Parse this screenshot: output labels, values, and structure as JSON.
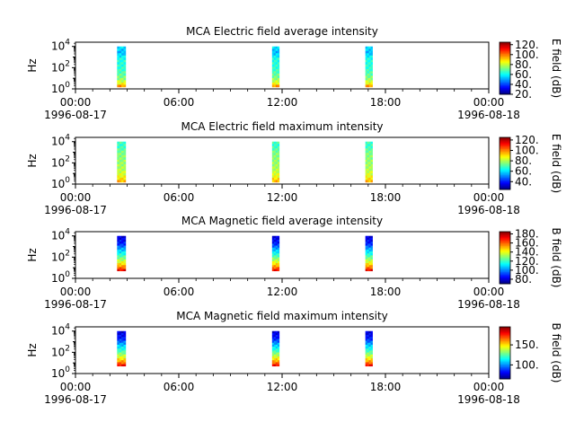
{
  "chart_data": [
    {
      "type": "heatmap",
      "title": "MCA  Electric field average intensity",
      "ylabel": "Hz",
      "y_scale": "log",
      "y_ticks": [
        {
          "base": "10",
          "exp": "0"
        },
        {
          "base": "10",
          "exp": "2"
        },
        {
          "base": "10",
          "exp": "4"
        }
      ],
      "colorbar": {
        "label": "E field (dB)",
        "ticks": [
          "20.",
          "40.",
          "60.",
          "80.",
          "100.",
          "120."
        ],
        "range": [
          20,
          125
        ]
      },
      "x_ticks": [
        "00:00",
        "06:00",
        "12:00",
        "18:00",
        "00:00"
      ],
      "x_dates": [
        "1996-08-17",
        "1996-08-18"
      ],
      "segments": [
        {
          "start": "1996-08-17T02:25",
          "end": "1996-08-17T02:55",
          "freq_min_hz": 1.5,
          "freq_max_hz": 10000,
          "profile": "e_avg"
        },
        {
          "start": "1996-08-17T11:25",
          "end": "1996-08-17T11:50",
          "freq_min_hz": 1.5,
          "freq_max_hz": 10000,
          "profile": "e_avg"
        },
        {
          "start": "1996-08-17T16:50",
          "end": "1996-08-17T17:15",
          "freq_min_hz": 1.5,
          "freq_max_hz": 10000,
          "profile": "e_avg"
        }
      ]
    },
    {
      "type": "heatmap",
      "title": "MCA  Electric field maximum intensity",
      "ylabel": "Hz",
      "y_scale": "log",
      "y_ticks": [
        {
          "base": "10",
          "exp": "0"
        },
        {
          "base": "10",
          "exp": "2"
        },
        {
          "base": "10",
          "exp": "4"
        }
      ],
      "colorbar": {
        "label": "E field (dB)",
        "ticks": [
          "40.",
          "60.",
          "80.",
          "100.",
          "120."
        ],
        "range": [
          25,
          125
        ]
      },
      "x_ticks": [
        "00:00",
        "06:00",
        "12:00",
        "18:00",
        "00:00"
      ],
      "x_dates": [
        "1996-08-17",
        "1996-08-18"
      ],
      "segments": [
        {
          "start": "1996-08-17T02:25",
          "end": "1996-08-17T02:55",
          "freq_min_hz": 1.5,
          "freq_max_hz": 10000,
          "profile": "e_max"
        },
        {
          "start": "1996-08-17T11:25",
          "end": "1996-08-17T11:50",
          "freq_min_hz": 1.5,
          "freq_max_hz": 10000,
          "profile": "e_max"
        },
        {
          "start": "1996-08-17T16:50",
          "end": "1996-08-17T17:15",
          "freq_min_hz": 1.5,
          "freq_max_hz": 10000,
          "profile": "e_max"
        }
      ]
    },
    {
      "type": "heatmap",
      "title": "MCA  Magnetic field average intensity",
      "ylabel": "Hz",
      "y_scale": "log",
      "y_ticks": [
        {
          "base": "10",
          "exp": "0"
        },
        {
          "base": "10",
          "exp": "2"
        },
        {
          "base": "10",
          "exp": "4"
        }
      ],
      "colorbar": {
        "label": "B field (dB)",
        "ticks": [
          "80.",
          "100.",
          "120.",
          "140.",
          "160.",
          "180."
        ],
        "range": [
          70,
          185
        ]
      },
      "x_ticks": [
        "00:00",
        "06:00",
        "12:00",
        "18:00",
        "00:00"
      ],
      "x_dates": [
        "1996-08-17",
        "1996-08-18"
      ],
      "segments": [
        {
          "start": "1996-08-17T02:25",
          "end": "1996-08-17T02:55",
          "freq_min_hz": 5,
          "freq_max_hz": 10000,
          "profile": "b"
        },
        {
          "start": "1996-08-17T11:25",
          "end": "1996-08-17T11:50",
          "freq_min_hz": 5,
          "freq_max_hz": 10000,
          "profile": "b"
        },
        {
          "start": "1996-08-17T16:50",
          "end": "1996-08-17T17:15",
          "freq_min_hz": 5,
          "freq_max_hz": 10000,
          "profile": "b"
        }
      ]
    },
    {
      "type": "heatmap",
      "title": "MCA  Magnetic field maximum intensity",
      "ylabel": "Hz",
      "y_scale": "log",
      "y_ticks": [
        {
          "base": "10",
          "exp": "0"
        },
        {
          "base": "10",
          "exp": "2"
        },
        {
          "base": "10",
          "exp": "4"
        }
      ],
      "colorbar": {
        "label": "B field (dB)",
        "ticks": [
          "100.",
          "150."
        ],
        "range": [
          65,
          195
        ]
      },
      "x_ticks": [
        "00:00",
        "06:00",
        "12:00",
        "18:00",
        "00:00"
      ],
      "x_dates": [
        "1996-08-17",
        "1996-08-18"
      ],
      "segments": [
        {
          "start": "1996-08-17T02:25",
          "end": "1996-08-17T02:55",
          "freq_min_hz": 5,
          "freq_max_hz": 10000,
          "profile": "b"
        },
        {
          "start": "1996-08-17T11:25",
          "end": "1996-08-17T11:50",
          "freq_min_hz": 5,
          "freq_max_hz": 10000,
          "profile": "b"
        },
        {
          "start": "1996-08-17T16:50",
          "end": "1996-08-17T17:15",
          "freq_min_hz": 5,
          "freq_max_hz": 10000,
          "profile": "b"
        }
      ]
    }
  ]
}
